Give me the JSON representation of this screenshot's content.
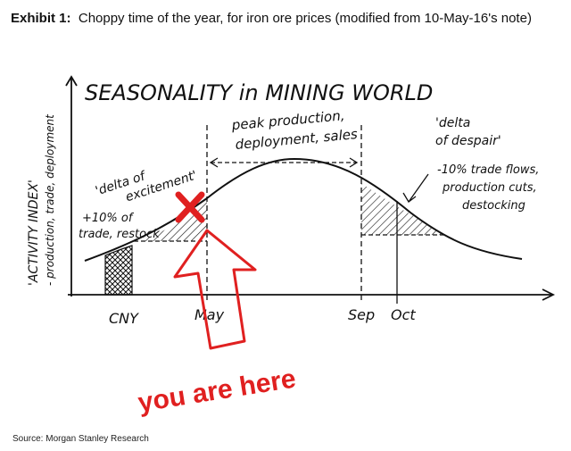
{
  "header": {
    "label": "Exhibit 1:",
    "title": "Choppy time of the year, for iron ore prices (modified from 10-May-16's note)"
  },
  "drawing": {
    "title": "SEASONALITY in MINING WORLD",
    "y_axis_label": "'ACTIVITY INDEX'",
    "y_axis_sublabel": "- production, trade, deployment",
    "peak": [
      "peak production,",
      "deployment, sales"
    ],
    "excitement": [
      "'delta of",
      "excitement'"
    ],
    "excitement_note": [
      "+10% of",
      "trade, restock"
    ],
    "despair": [
      "'delta",
      "of despair'"
    ],
    "despair_note": [
      "-10% trade flows,",
      "production cuts,",
      "destocking"
    ],
    "x_labels": [
      "CNY",
      "May",
      "Sep",
      "Oct"
    ],
    "pointer": "you are here"
  },
  "footer": {
    "source": "Source: Morgan Stanley Research"
  }
}
